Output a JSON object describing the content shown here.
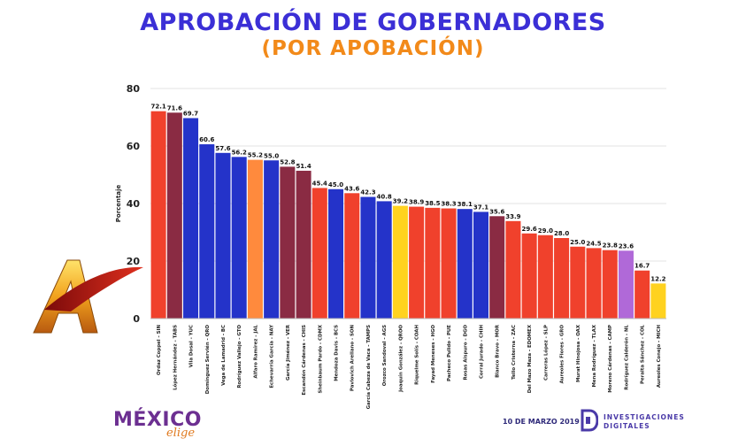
{
  "header": {
    "title": "APROBACIÓN DE GOBERNADORES",
    "subtitle": "(POR APOBACIÓN)"
  },
  "footer": {
    "brand_left_main": "MÉXICO",
    "brand_left_sub": "elige",
    "date": "10 DE MARZO 2019",
    "brand_right_line1": "INVESTIGACIONES",
    "brand_right_line2": "DIGITALES"
  },
  "colors": {
    "title": "#3b2fd6",
    "subtitle": "#f28a1a",
    "morena": "#f0412c",
    "pri": "#8a2b43",
    "pan": "#2433c9",
    "mc": "#ff8a3d",
    "prd": "#ffd21f",
    "independiente": "#b069d8"
  },
  "chart_data": {
    "type": "bar",
    "ylabel": "Porcentaje",
    "xlabel": "",
    "ylim": [
      0,
      80
    ],
    "yticks": [
      0,
      20,
      40,
      60,
      80
    ],
    "grid": true,
    "categories": [
      "Ordaz Coppel - SIN",
      "López Hernández - TABS",
      "Vila Dosal - YUC",
      "Domínguez Servién - QRO",
      "Vega de Lamadrid - BC",
      "Rodríguez Vallejo - GTO",
      "Alfaro Ramírez - JAL",
      "Echevarría García - NAY",
      "García Jiménez - VER",
      "Escandón Cárdenas - CHIS",
      "Sheinbaum Pardo - CDMX",
      "Mendoza Davis - BCS",
      "Pavlovich Arellano - SON",
      "García Cabeza de Vaca - TAMPS",
      "Orozco Sandoval - AGS",
      "Joaquín González - QROO",
      "Riquelme Solís - COAH",
      "Fayad Meneses - HGO",
      "Pacheco Pulido - PUE",
      "Rosas Aispuro - DGO",
      "Corral Jurado - CHIH",
      "Blanco Bravo - MOR",
      "Tello Cristerna - ZAC",
      "Del Mazo Maza - EDOMEX",
      "Carreras López - SLP",
      "Aureoles Flores - GRO",
      "Murat Hinojosa - OAX",
      "Mena Rodríguez - TLAX",
      "Moreno Cárdenas - CAMP",
      "Rodríguez Calderón - NL",
      "Peralta Sánchez - COL",
      "Aureoles Conejo - MICH"
    ],
    "values": [
      72.1,
      71.6,
      69.7,
      60.6,
      57.6,
      56.2,
      55.2,
      55.0,
      52.8,
      51.4,
      45.4,
      45.0,
      43.6,
      42.3,
      40.8,
      39.2,
      38.9,
      38.5,
      38.3,
      38.1,
      37.1,
      35.6,
      33.9,
      29.6,
      29.0,
      28.0,
      25.0,
      24.5,
      23.8,
      23.6,
      16.7,
      12.2
    ],
    "value_labels": [
      "72.1",
      "71.6",
      "69.7",
      "60.6",
      "57.6",
      "56.2",
      "55.2",
      "55.0",
      "52.8",
      "51.4",
      "45.4",
      "45.0",
      "43.6",
      "42.3",
      "40.8",
      "39.2",
      "38.9",
      "38.5",
      "38.3",
      "38.1",
      "37.1",
      "35.6",
      "33.9",
      "29.6",
      "29.0",
      "28.0",
      "25.0",
      "24.5",
      "23.8",
      "23.6",
      "16.7",
      "12.2"
    ],
    "bar_colors": [
      "#f0412c",
      "#8a2b43",
      "#2433c9",
      "#2433c9",
      "#2433c9",
      "#2433c9",
      "#ff8a3d",
      "#2433c9",
      "#8a2b43",
      "#8a2b43",
      "#f0412c",
      "#2433c9",
      "#f0412c",
      "#2433c9",
      "#2433c9",
      "#ffd21f",
      "#f0412c",
      "#f0412c",
      "#f0412c",
      "#2433c9",
      "#2433c9",
      "#8a2b43",
      "#f0412c",
      "#f0412c",
      "#f0412c",
      "#f0412c",
      "#f0412c",
      "#f0412c",
      "#f0412c",
      "#b069d8",
      "#f0412c",
      "#ffd21f"
    ]
  }
}
